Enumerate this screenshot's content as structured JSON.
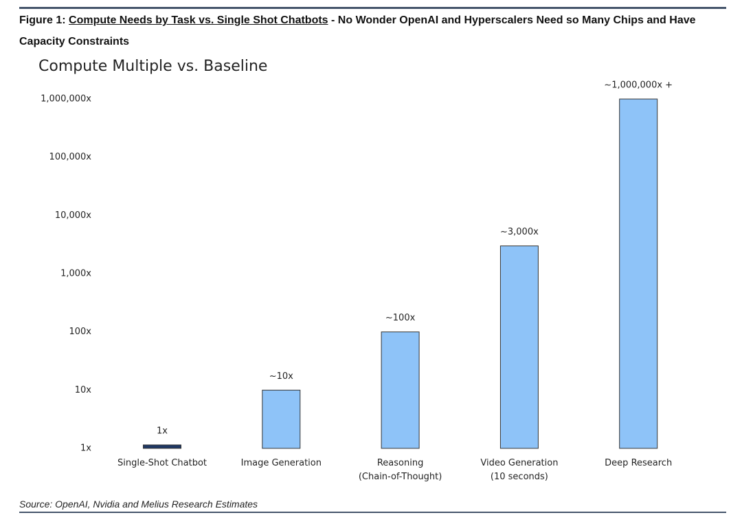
{
  "figure": {
    "label": "Figure 1:",
    "title_underlined": "Compute Needs by Task vs. Single Shot Chatbots",
    "title_rest": "- No Wonder OpenAI and Hyperscalers Need so Many Chips and Have Capacity Constraints"
  },
  "source": "Source: OpenAI, Nvidia and Melius Research Estimates",
  "chart_data": {
    "type": "bar",
    "title": "Compute Multiple vs. Baseline",
    "categories": [
      "Single-Shot Chatbot",
      "Image Generation",
      "Reasoning\n(Chain-of-Thought)",
      "Video Generation\n(10 seconds)",
      "Deep Research"
    ],
    "values": [
      1,
      10,
      100,
      3000,
      1000000
    ],
    "value_labels": [
      "1x",
      "~10x",
      "~100x",
      "~3,000x",
      "~1,000,000x +"
    ],
    "colors": [
      "#1f3864",
      "#8ec3f8",
      "#8ec3f8",
      "#8ec3f8",
      "#8ec3f8"
    ],
    "log_scale": true,
    "grid": false,
    "ylim": [
      1,
      1000000
    ],
    "yticks": [
      {
        "value": 1,
        "label": "1x"
      },
      {
        "value": 10,
        "label": "10x"
      },
      {
        "value": 100,
        "label": "100x"
      },
      {
        "value": 1000,
        "label": "1,000x"
      },
      {
        "value": 10000,
        "label": "10,000x"
      },
      {
        "value": 100000,
        "label": "100,000x"
      },
      {
        "value": 1000000,
        "label": "1,000,000x"
      }
    ]
  }
}
